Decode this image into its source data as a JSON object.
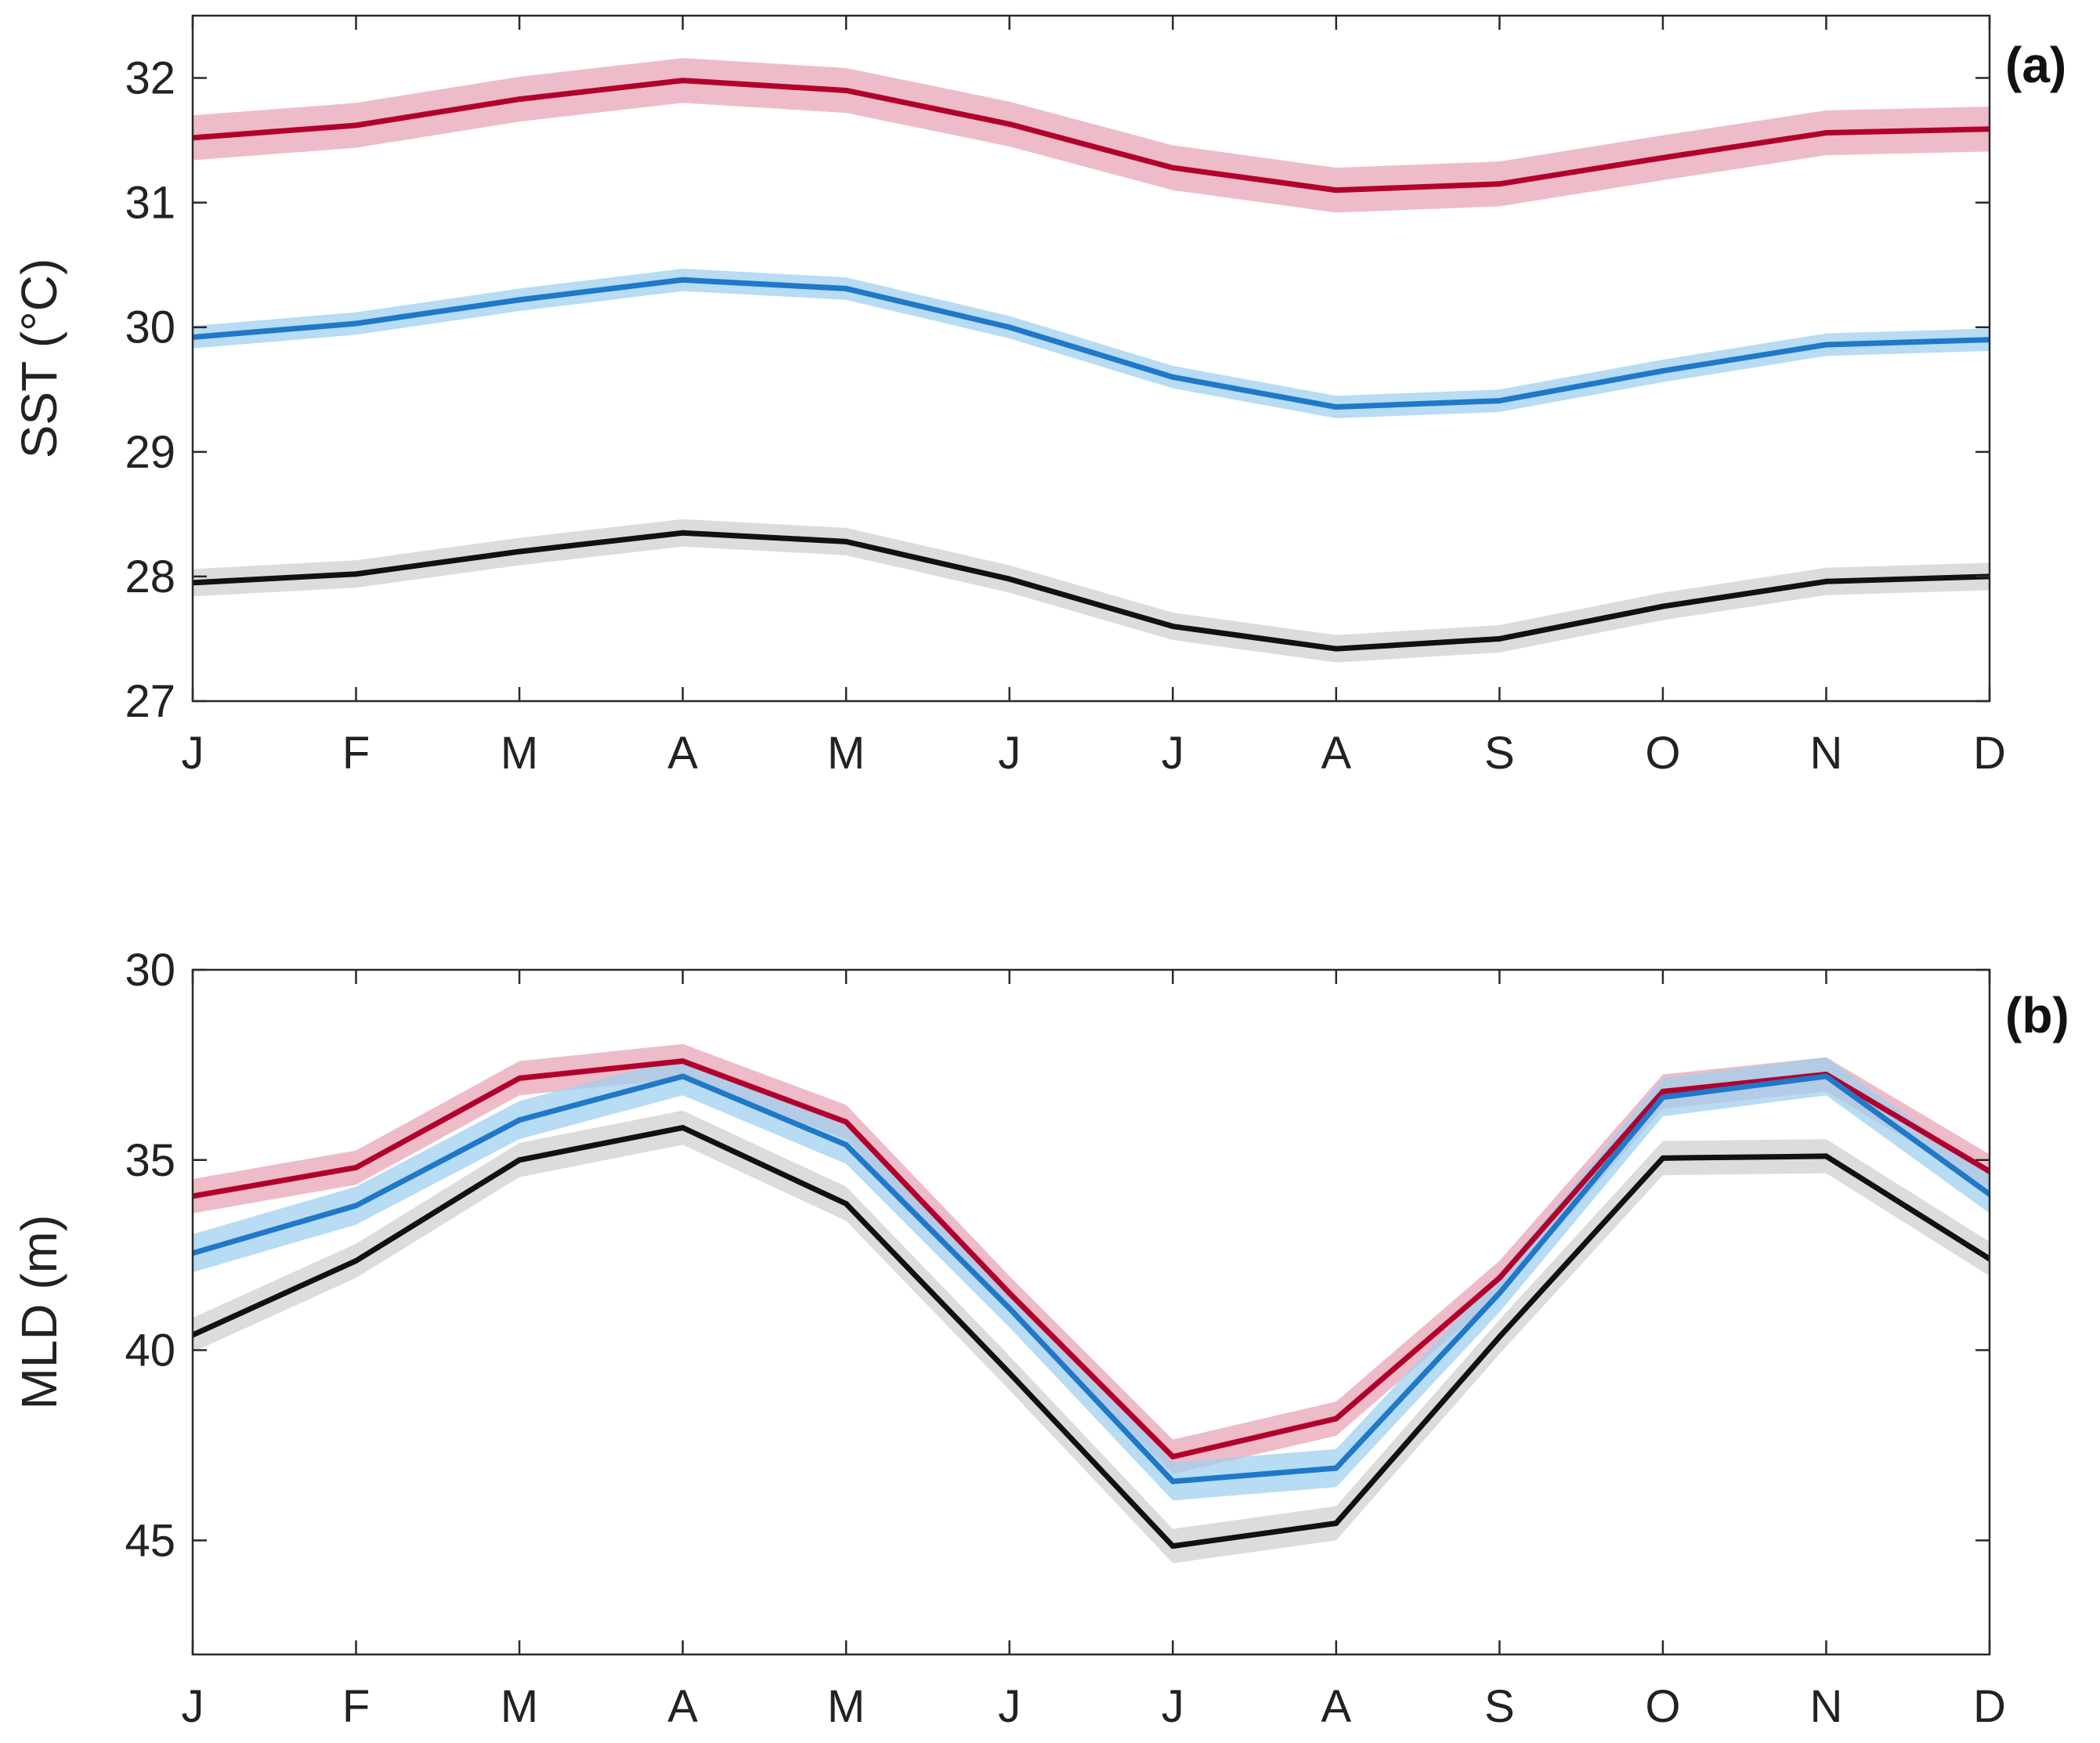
{
  "chart_data": [
    {
      "type": "line",
      "panel_label": "(a)",
      "title": "",
      "xlabel": "",
      "ylabel": "SST (°C)",
      "categories": [
        "J",
        "F",
        "M",
        "A",
        "M",
        "J",
        "J",
        "A",
        "S",
        "O",
        "N",
        "D"
      ],
      "ylim": [
        27,
        32.5
      ],
      "y_reversed": false,
      "yticks": [
        27,
        28,
        29,
        30,
        31,
        32
      ],
      "ytick_labels": [
        "27",
        "28",
        "29",
        "30",
        "31",
        "32"
      ],
      "grid": false,
      "series": [
        {
          "name": "red",
          "color": "#b2002d",
          "band_color": "#e8a5b5",
          "band_halfwidth": 0.18,
          "values": [
            31.52,
            31.62,
            31.83,
            31.98,
            31.9,
            31.63,
            31.28,
            31.1,
            31.15,
            31.36,
            31.56,
            31.59
          ]
        },
        {
          "name": "blue",
          "color": "#1f78c8",
          "band_color": "#9fd0ef",
          "band_halfwidth": 0.09,
          "values": [
            29.92,
            30.03,
            30.22,
            30.38,
            30.31,
            30.0,
            29.6,
            29.36,
            29.41,
            29.65,
            29.86,
            29.9
          ]
        },
        {
          "name": "black",
          "color": "#111111",
          "band_color": "#d0d0d0",
          "band_halfwidth": 0.11,
          "values": [
            27.95,
            28.02,
            28.2,
            28.35,
            28.28,
            27.98,
            27.6,
            27.42,
            27.5,
            27.76,
            27.96,
            28.0
          ]
        }
      ]
    },
    {
      "type": "line",
      "panel_label": "(b)",
      "title": "",
      "xlabel": "",
      "ylabel": "MLD (m)",
      "categories": [
        "J",
        "F",
        "M",
        "A",
        "M",
        "J",
        "J",
        "A",
        "S",
        "O",
        "N",
        "D"
      ],
      "ylim": [
        30,
        48
      ],
      "y_reversed": true,
      "yticks": [
        30,
        35,
        40,
        45
      ],
      "ytick_labels": [
        "30",
        "35",
        "40",
        "45"
      ],
      "grid": false,
      "series": [
        {
          "name": "red",
          "color": "#b2002d",
          "band_color": "#e8a5b5",
          "band_halfwidth": 0.45,
          "values": [
            35.95,
            35.2,
            32.85,
            32.4,
            34.0,
            38.5,
            42.8,
            41.8,
            38.1,
            33.2,
            32.75,
            35.3
          ]
        },
        {
          "name": "blue",
          "color": "#1f78c8",
          "band_color": "#9fd0ef",
          "band_halfwidth": 0.5,
          "values": [
            37.45,
            36.2,
            33.95,
            32.8,
            34.6,
            38.9,
            43.45,
            43.1,
            38.5,
            33.35,
            32.8,
            35.9
          ]
        },
        {
          "name": "black",
          "color": "#111111",
          "band_color": "#d0d0d0",
          "band_halfwidth": 0.45,
          "values": [
            39.6,
            37.65,
            35.0,
            34.15,
            36.15,
            40.6,
            45.15,
            44.55,
            39.65,
            34.95,
            34.9,
            37.6
          ]
        }
      ]
    }
  ]
}
